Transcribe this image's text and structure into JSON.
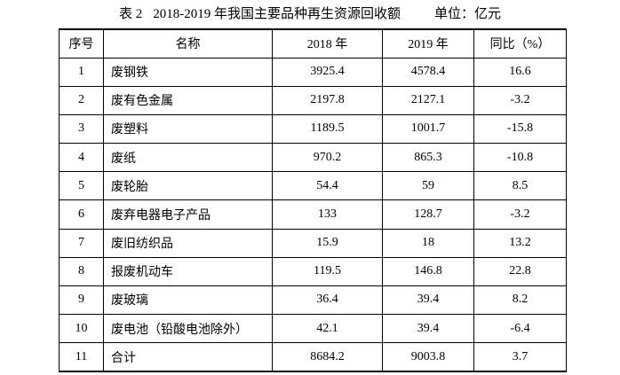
{
  "title": {
    "label": "表 2",
    "text": "2018-2019 年我国主要品种再生资源回收额",
    "unit": "单位：亿元"
  },
  "table": {
    "headers": [
      "序号",
      "名称",
      "2018 年",
      "2019 年",
      "同比（%）"
    ],
    "rows": [
      {
        "no": "1",
        "name": "废钢铁",
        "y2018": "3925.4",
        "y2019": "4578.4",
        "yoy": "16.6"
      },
      {
        "no": "2",
        "name": "废有色金属",
        "y2018": "2197.8",
        "y2019": "2127.1",
        "yoy": "-3.2"
      },
      {
        "no": "3",
        "name": "废塑料",
        "y2018": "1189.5",
        "y2019": "1001.7",
        "yoy": "-15.8"
      },
      {
        "no": "4",
        "name": "废纸",
        "y2018": "970.2",
        "y2019": "865.3",
        "yoy": "-10.8"
      },
      {
        "no": "5",
        "name": "废轮胎",
        "y2018": "54.4",
        "y2019": "59",
        "yoy": "8.5"
      },
      {
        "no": "6",
        "name": "废弃电器电子产品",
        "y2018": "133",
        "y2019": "128.7",
        "yoy": "-3.2"
      },
      {
        "no": "7",
        "name": "废旧纺织品",
        "y2018": "15.9",
        "y2019": "18",
        "yoy": "13.2"
      },
      {
        "no": "8",
        "name": "报废机动车",
        "y2018": "119.5",
        "y2019": "146.8",
        "yoy": "22.8"
      },
      {
        "no": "9",
        "name": "废玻璃",
        "y2018": "36.4",
        "y2019": "39.4",
        "yoy": "8.2"
      },
      {
        "no": "10",
        "name": "废电池（铅酸电池除外）",
        "y2018": "42.1",
        "y2019": "39.4",
        "yoy": "-6.4"
      },
      {
        "no": "11",
        "name": "合计",
        "y2018": "8684.2",
        "y2019": "9003.8",
        "yoy": "3.7"
      }
    ]
  },
  "colors": {
    "text": "#000000",
    "border": "#000000",
    "background": "#ffffff"
  }
}
